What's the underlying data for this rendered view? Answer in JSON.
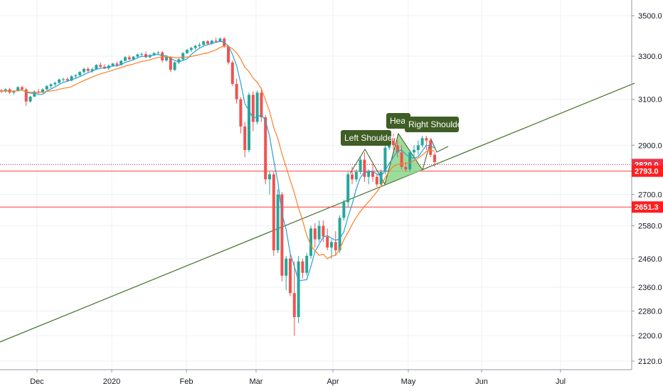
{
  "chart_data": {
    "type": "candlestick",
    "x_ticks": [
      "Dec",
      "2020",
      "Feb",
      "Mar",
      "Apr",
      "May",
      "Jun",
      "Jul"
    ],
    "y_ticks": [
      "3500.0",
      "3300.0",
      "3100.0",
      "2900.0",
      "2700.0",
      "2580.0",
      "2460.0",
      "2360.0",
      "2280.0",
      "2200.0",
      "2120.0"
    ],
    "y_scale": "log",
    "ylim": [
      2100,
      3560
    ],
    "grid": true,
    "colors": {
      "up": "#26a69a",
      "down": "#ef5350",
      "ma_fast": "#2a9fd6",
      "ma_slow": "#ff7f27",
      "trendline": "#4f7a35",
      "hline": "#ff3b3b",
      "dotted": "#c2185b",
      "pattern_fill": "#8bd68b"
    },
    "price_levels": [
      {
        "label": "2820.0",
        "value": 2820.0,
        "style": "dotted"
      },
      {
        "label": "2793.0",
        "value": 2793.0,
        "style": "solid"
      },
      {
        "label": "2651.3",
        "value": 2651.3,
        "style": "solid"
      }
    ],
    "annotations": [
      "Left Shoulder",
      "Hea",
      "Right Shoulder"
    ],
    "candles": [
      [
        3140,
        3147,
        3128,
        3135
      ],
      [
        3135,
        3150,
        3130,
        3145
      ],
      [
        3145,
        3152,
        3125,
        3130
      ],
      [
        3130,
        3140,
        3120,
        3137
      ],
      [
        3137,
        3160,
        3135,
        3155
      ],
      [
        3155,
        3162,
        3140,
        3145
      ],
      [
        3145,
        3152,
        3070,
        3090
      ],
      [
        3090,
        3115,
        3085,
        3112
      ],
      [
        3112,
        3140,
        3110,
        3135
      ],
      [
        3135,
        3147,
        3125,
        3130
      ],
      [
        3130,
        3150,
        3128,
        3145
      ],
      [
        3145,
        3165,
        3140,
        3160
      ],
      [
        3160,
        3172,
        3150,
        3168
      ],
      [
        3168,
        3180,
        3160,
        3175
      ],
      [
        3175,
        3195,
        3172,
        3190
      ],
      [
        3190,
        3198,
        3180,
        3192
      ],
      [
        3192,
        3200,
        3180,
        3185
      ],
      [
        3185,
        3210,
        3182,
        3205
      ],
      [
        3205,
        3215,
        3195,
        3210
      ],
      [
        3210,
        3230,
        3205,
        3225
      ],
      [
        3225,
        3245,
        3218,
        3240
      ],
      [
        3240,
        3248,
        3225,
        3230
      ],
      [
        3230,
        3245,
        3222,
        3238
      ],
      [
        3238,
        3262,
        3235,
        3258
      ],
      [
        3258,
        3270,
        3245,
        3250
      ],
      [
        3250,
        3262,
        3238,
        3242
      ],
      [
        3242,
        3260,
        3235,
        3255
      ],
      [
        3255,
        3268,
        3250,
        3265
      ],
      [
        3265,
        3275,
        3250,
        3258
      ],
      [
        3258,
        3282,
        3255,
        3278
      ],
      [
        3278,
        3300,
        3275,
        3295
      ],
      [
        3295,
        3305,
        3280,
        3285
      ],
      [
        3285,
        3300,
        3280,
        3298
      ],
      [
        3298,
        3312,
        3290,
        3308
      ],
      [
        3308,
        3318,
        3300,
        3310
      ],
      [
        3310,
        3322,
        3290,
        3295
      ],
      [
        3295,
        3310,
        3290,
        3305
      ],
      [
        3305,
        3320,
        3300,
        3315
      ],
      [
        3315,
        3325,
        3308,
        3318
      ],
      [
        3318,
        3325,
        3270,
        3280
      ],
      [
        3280,
        3300,
        3272,
        3295
      ],
      [
        3295,
        3300,
        3225,
        3235
      ],
      [
        3235,
        3275,
        3230,
        3270
      ],
      [
        3270,
        3290,
        3262,
        3285
      ],
      [
        3285,
        3320,
        3280,
        3315
      ],
      [
        3315,
        3335,
        3310,
        3330
      ],
      [
        3330,
        3345,
        3320,
        3340
      ],
      [
        3340,
        3355,
        3330,
        3350
      ],
      [
        3350,
        3365,
        3340,
        3355
      ],
      [
        3355,
        3375,
        3350,
        3372
      ],
      [
        3372,
        3378,
        3355,
        3360
      ],
      [
        3360,
        3380,
        3355,
        3375
      ],
      [
        3375,
        3390,
        3365,
        3370
      ],
      [
        3370,
        3392,
        3368,
        3385
      ],
      [
        3385,
        3393,
        3340,
        3348
      ],
      [
        3348,
        3352,
        3260,
        3270
      ],
      [
        3270,
        3280,
        3160,
        3170
      ],
      [
        3170,
        3195,
        3080,
        3100
      ],
      [
        3100,
        3110,
        2950,
        2980
      ],
      [
        2980,
        3000,
        2850,
        2880
      ],
      [
        2880,
        3130,
        2870,
        3120
      ],
      [
        3120,
        3135,
        2960,
        3000
      ],
      [
        3000,
        3140,
        2990,
        3130
      ],
      [
        3130,
        3145,
        3000,
        3020
      ],
      [
        3020,
        3030,
        2740,
        2760
      ],
      [
        2760,
        2790,
        2700,
        2780
      ],
      [
        2780,
        2790,
        2470,
        2490
      ],
      [
        2490,
        2720,
        2480,
        2700
      ],
      [
        2700,
        2710,
        2380,
        2400
      ],
      [
        2400,
        2470,
        2350,
        2460
      ],
      [
        2460,
        2480,
        2330,
        2340
      ],
      [
        2340,
        2450,
        2200,
        2260
      ],
      [
        2260,
        2470,
        2240,
        2450
      ],
      [
        2450,
        2460,
        2390,
        2410
      ],
      [
        2410,
        2480,
        2400,
        2470
      ],
      [
        2470,
        2580,
        2460,
        2570
      ],
      [
        2570,
        2590,
        2500,
        2530
      ],
      [
        2530,
        2600,
        2520,
        2580
      ],
      [
        2580,
        2600,
        2520,
        2540
      ],
      [
        2540,
        2570,
        2490,
        2500
      ],
      [
        2500,
        2530,
        2460,
        2520
      ],
      [
        2520,
        2560,
        2470,
        2490
      ],
      [
        2490,
        2620,
        2480,
        2610
      ],
      [
        2610,
        2680,
        2600,
        2670
      ],
      [
        2670,
        2790,
        2650,
        2780
      ],
      [
        2780,
        2810,
        2740,
        2760
      ],
      [
        2760,
        2800,
        2750,
        2790
      ],
      [
        2790,
        2850,
        2780,
        2840
      ],
      [
        2840,
        2870,
        2750,
        2770
      ],
      [
        2770,
        2800,
        2740,
        2790
      ],
      [
        2790,
        2830,
        2750,
        2770
      ],
      [
        2770,
        2780,
        2730,
        2740
      ],
      [
        2740,
        2800,
        2730,
        2790
      ],
      [
        2790,
        2900,
        2780,
        2890
      ],
      [
        2890,
        2940,
        2880,
        2930
      ],
      [
        2930,
        2950,
        2880,
        2900
      ],
      [
        2900,
        2920,
        2850,
        2870
      ],
      [
        2870,
        2900,
        2800,
        2810
      ],
      [
        2810,
        2830,
        2790,
        2800
      ],
      [
        2800,
        2880,
        2790,
        2870
      ],
      [
        2870,
        2900,
        2850,
        2880
      ],
      [
        2880,
        2920,
        2860,
        2900
      ],
      [
        2900,
        2940,
        2890,
        2930
      ],
      [
        2930,
        2940,
        2880,
        2920
      ],
      [
        2920,
        2930,
        2850,
        2860
      ],
      [
        2860,
        2870,
        2810,
        2830
      ]
    ]
  }
}
